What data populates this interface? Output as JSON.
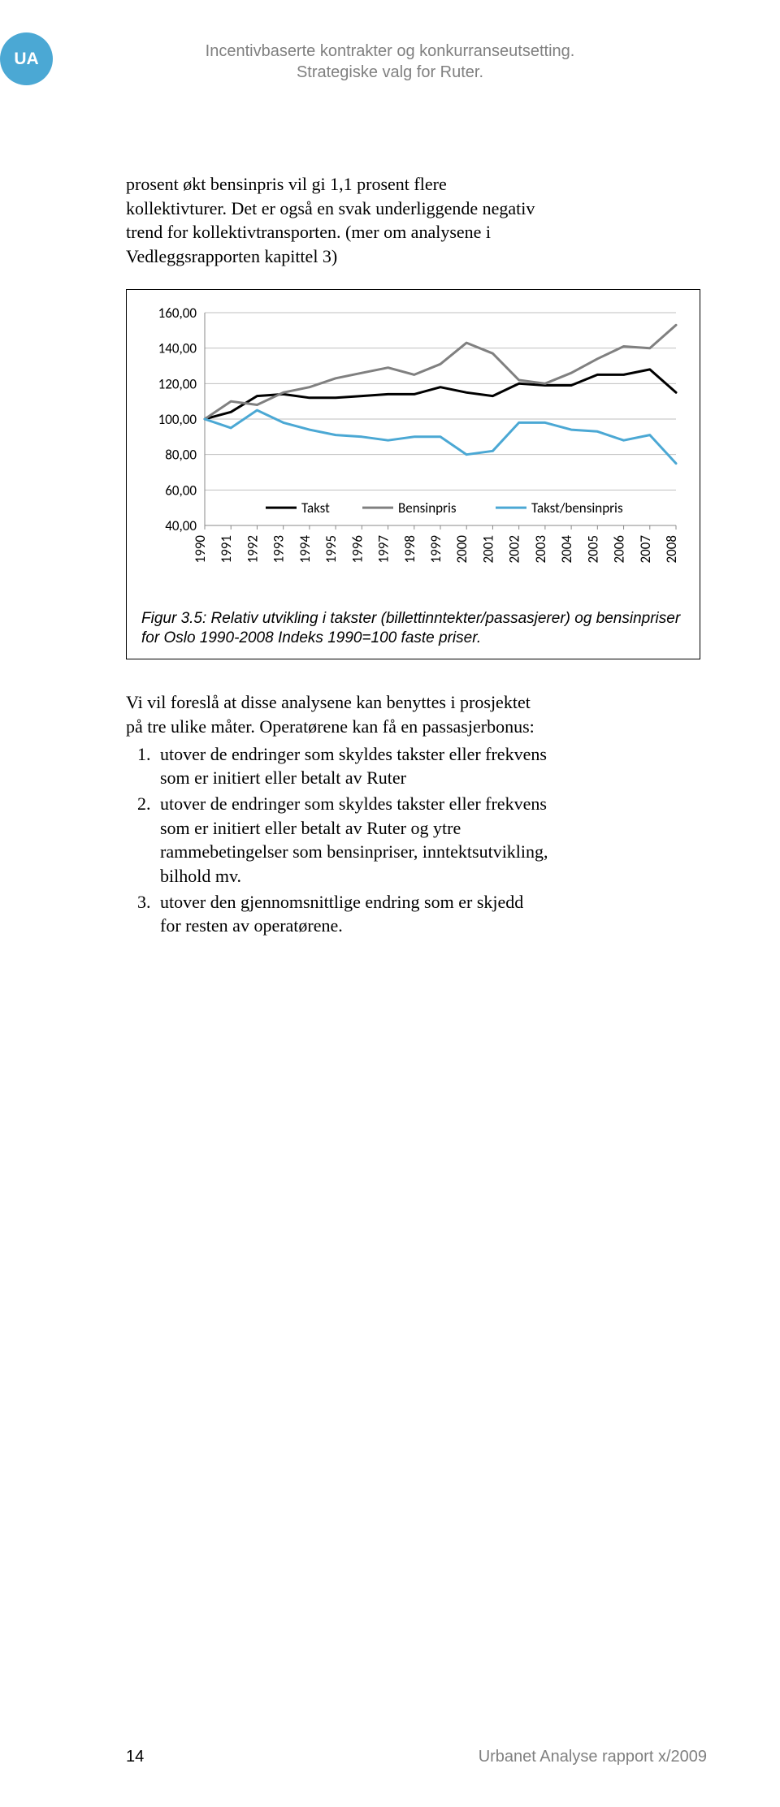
{
  "badge": "UA",
  "header": {
    "line1": "Incentivbaserte kontrakter og konkurranseutsetting.",
    "line2": "Strategiske valg for Ruter."
  },
  "para1": "prosent økt bensinpris vil gi 1,1 prosent flere kollektivturer. Det er også en svak underliggende negativ trend for kollektivtransporten. (mer om analysene i Vedleggsrapporten kapittel 3)",
  "chart": {
    "type": "line",
    "years": [
      "1990",
      "1991",
      "1992",
      "1993",
      "1994",
      "1995",
      "1996",
      "1997",
      "1998",
      "1999",
      "2000",
      "2001",
      "2002",
      "2003",
      "2004",
      "2005",
      "2006",
      "2007",
      "2008"
    ],
    "series": {
      "takst": {
        "label": "Takst",
        "color": "#000000",
        "width": 3,
        "values": [
          100,
          104,
          113,
          114,
          112,
          112,
          113,
          114,
          114,
          118,
          115,
          113,
          120,
          119,
          119,
          125,
          125,
          128,
          115
        ]
      },
      "bensinpris": {
        "label": "Bensinpris",
        "color": "#808080",
        "width": 3,
        "values": [
          100,
          110,
          108,
          115,
          118,
          123,
          126,
          129,
          125,
          131,
          143,
          137,
          122,
          120,
          126,
          134,
          141,
          140,
          153
        ]
      },
      "takst_bensinpris": {
        "label": "Takst/bensinpris",
        "color": "#4ba8d4",
        "width": 3,
        "values": [
          100,
          95,
          105,
          98,
          94,
          91,
          90,
          88,
          90,
          90,
          80,
          82,
          98,
          98,
          94,
          93,
          88,
          91,
          75
        ]
      }
    },
    "legend_order": [
      "takst",
      "bensinpris",
      "takst_bensinpris"
    ],
    "yticks": [
      40,
      60,
      80,
      100,
      120,
      140,
      160
    ],
    "ytick_labels": [
      "40,00",
      "60,00",
      "80,00",
      "100,00",
      "120,00",
      "140,00",
      "160,00"
    ],
    "ylim": [
      40,
      160
    ],
    "grid_color": "#bfbfbf",
    "axis_color": "#888888",
    "label_fontsize": 17,
    "caption": "Figur 3.5: Relativ utvikling i takster (billettinntekter/passasjerer) og bensinpriser for Oslo 1990-2008 Indeks 1990=100 faste priser."
  },
  "para2": "Vi vil foreslå at disse analysene kan benyttes i prosjektet på tre ulike måter. Operatørene kan få en passasjerbonus:",
  "list": [
    "utover de endringer som skyldes takster eller frekvens som er initiert eller betalt av Ruter",
    "utover de endringer som skyldes takster eller frekvens som er initiert eller betalt av Ruter og ytre rammebetingelser som bensinpriser, inntektsutvikling, bilhold mv.",
    "utover den gjennomsnittlige endring som er skjedd for resten av operatørene."
  ],
  "footer": {
    "page": "14",
    "right": "Urbanet Analyse rapport x/2009"
  }
}
